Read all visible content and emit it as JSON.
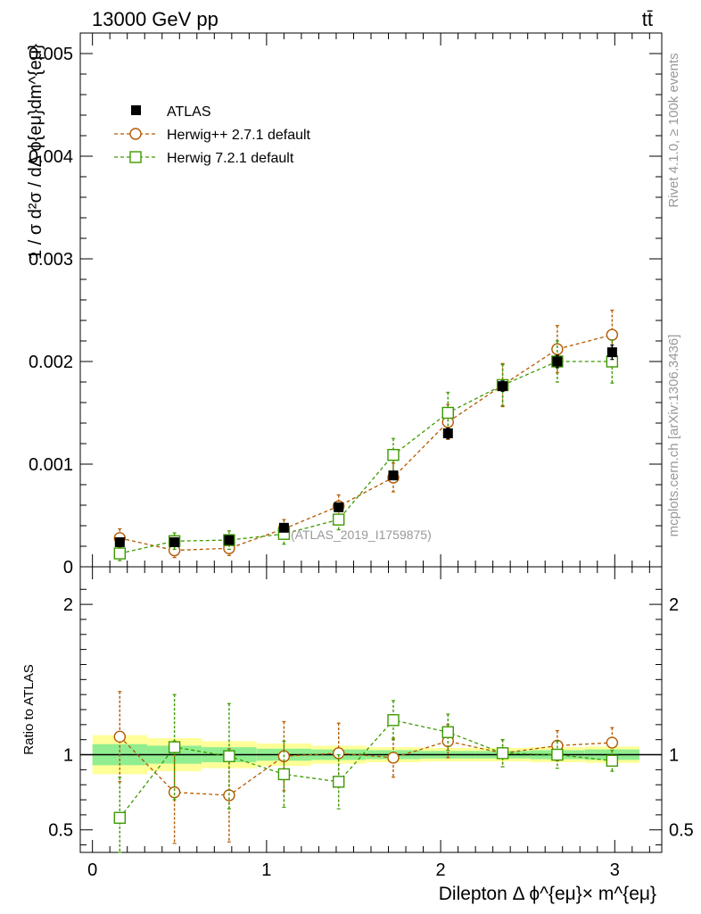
{
  "header": {
    "left": "13000 GeV pp",
    "right": "tt̄"
  },
  "side_labels": {
    "rivet": "Rivet 4.1.0, ≥ 100k events",
    "source": "mcplots.cern.ch [arXiv:1306.3436]"
  },
  "analysis_label": "(ATLAS_2019_I1759875)",
  "colors": {
    "data": "#000000",
    "herwigpp": "#b35900",
    "herwig7": "#3d9900",
    "band_inner": "#90ee90",
    "band_outer": "#ffff99"
  },
  "chart_data": [
    {
      "type": "scatter",
      "panel": "main",
      "ylabel": "1 / σ  d²σ / dΔ ϕ{eμ}dm^{eμ}",
      "ylim": [
        0,
        0.0052
      ],
      "yticks": [
        {
          "v": 0,
          "label": "0"
        },
        {
          "v": 0.001,
          "label": "0.001"
        },
        {
          "v": 0.002,
          "label": "0.002"
        },
        {
          "v": 0.003,
          "label": "0.003"
        },
        {
          "v": 0.004,
          "label": "0.004"
        },
        {
          "v": 0.005,
          "label": "0.005"
        }
      ],
      "x": [
        0.157,
        0.471,
        0.785,
        1.1,
        1.414,
        1.728,
        2.042,
        2.356,
        2.67,
        2.985
      ],
      "xerr": 0.157,
      "legend": [
        "ATLAS",
        "Herwig++ 2.7.1 default",
        "Herwig 7.2.1 default"
      ],
      "series": [
        {
          "name": "ATLAS",
          "marker": "filled-square",
          "values": [
            0.00024,
            0.00024,
            0.00026,
            0.00038,
            0.00058,
            0.00089,
            0.0013,
            0.00176,
            0.002,
            0.00209
          ],
          "err": [
            2e-05,
            2e-05,
            2e-05,
            3e-05,
            3e-05,
            4e-05,
            5e-05,
            5e-05,
            6e-05,
            7e-05
          ]
        },
        {
          "name": "Herwig++ 2.7.1 default",
          "marker": "open-circle",
          "values": [
            0.00028,
            0.00016,
            0.00018,
            0.00037,
            0.00059,
            0.00087,
            0.00141,
            0.00177,
            0.00212,
            0.00226
          ],
          "err": [
            9e-05,
            7e-05,
            7e-05,
            9e-05,
            0.00011,
            0.00014,
            0.00017,
            0.00021,
            0.00023,
            0.00024
          ]
        },
        {
          "name": "Herwig 7.2.1 default",
          "marker": "open-square",
          "values": [
            0.00013,
            0.00025,
            0.00026,
            0.00032,
            0.00046,
            0.00109,
            0.0015,
            0.00177,
            0.002,
            0.002
          ],
          "err": [
            7e-05,
            8e-05,
            9e-05,
            0.0001,
            0.0001,
            0.00016,
            0.0002,
            0.0002,
            0.0002,
            0.00021
          ]
        }
      ]
    },
    {
      "type": "scatter",
      "panel": "ratio",
      "ylabel": "Ratio to ATLAS",
      "xlabel": "Dilepton Δ ϕ^{eμ}× m^{eμ}",
      "ylim": [
        0.35,
        2.25
      ],
      "xlim": [
        -0.07,
        3.27
      ],
      "yticks": [
        {
          "v": 0.5,
          "label": "0.5"
        },
        {
          "v": 1,
          "label": "1"
        },
        {
          "v": 2,
          "label": "2"
        }
      ],
      "xticks": [
        {
          "v": 0,
          "label": "0"
        },
        {
          "v": 1,
          "label": "1"
        },
        {
          "v": 2,
          "label": "2"
        },
        {
          "v": 3,
          "label": "3"
        }
      ],
      "band_inner": [
        0.07,
        0.06,
        0.05,
        0.04,
        0.035,
        0.03,
        0.025,
        0.025,
        0.03,
        0.035
      ],
      "band_outer": [
        0.13,
        0.11,
        0.09,
        0.075,
        0.06,
        0.05,
        0.045,
        0.045,
        0.05,
        0.055
      ],
      "series": [
        {
          "name": "Herwig++ 2.7.1 default",
          "values": [
            1.12,
            0.75,
            0.73,
            0.99,
            1.01,
            0.98,
            1.09,
            1.01,
            1.06,
            1.08
          ],
          "err": [
            0.3,
            0.34,
            0.31,
            0.23,
            0.2,
            0.13,
            0.11,
            0.09,
            0.1,
            0.1
          ]
        },
        {
          "name": "Herwig 7.2.1 default",
          "values": [
            0.58,
            1.05,
            0.99,
            0.87,
            0.82,
            1.23,
            1.15,
            1.01,
            1.0,
            0.96
          ],
          "err": [
            0.27,
            0.35,
            0.35,
            0.22,
            0.18,
            0.13,
            0.12,
            0.09,
            0.09,
            0.07
          ]
        }
      ]
    }
  ]
}
